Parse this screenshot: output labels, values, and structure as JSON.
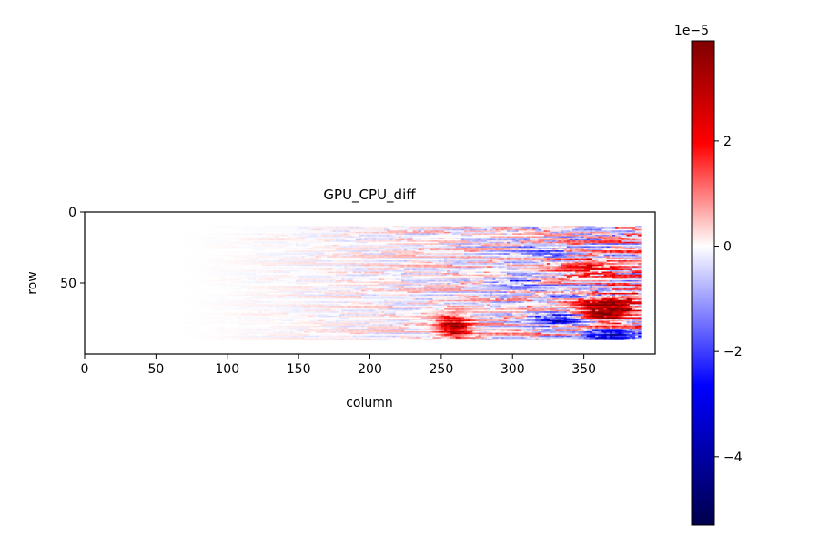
{
  "chart_data": {
    "type": "heatmap",
    "title": "GPU_CPU_diff",
    "xlabel": "column",
    "ylabel": "row",
    "x_ticks": [
      0,
      50,
      100,
      150,
      200,
      250,
      300,
      350
    ],
    "y_ticks": [
      0,
      50
    ],
    "xlim": [
      0,
      400
    ],
    "ylim": [
      100,
      0
    ],
    "grid": false,
    "data_shape": {
      "rows": 100,
      "columns": 400
    },
    "data_extent": {
      "columns": [
        0,
        390
      ],
      "rows": [
        10,
        90
      ]
    },
    "colormap": {
      "name": "seismic",
      "stops": [
        "#00004c",
        "#0000ff",
        "#ffffff",
        "#ff0000",
        "#7f0000"
      ]
    },
    "colorbar": {
      "vmin": -5.3,
      "vmax": 3.9,
      "scale_label": "1e−5",
      "ticks": [
        {
          "value": -4,
          "label": "−4"
        },
        {
          "value": -2,
          "label": "−2"
        },
        {
          "value": 0,
          "label": "0"
        },
        {
          "value": 2,
          "label": "2"
        }
      ]
    },
    "hotspots": [
      {
        "col": 258,
        "row": 80,
        "value": 3.0,
        "cols_spread": 12,
        "rows_spread": 9
      },
      {
        "col": 352,
        "row": 38,
        "value": 1.8,
        "cols_spread": 30,
        "rows_spread": 6
      },
      {
        "col": 360,
        "row": 62,
        "value": 2.6,
        "cols_spread": 28,
        "rows_spread": 7
      },
      {
        "col": 366,
        "row": 70,
        "value": 3.2,
        "cols_spread": 16,
        "rows_spread": 6
      },
      {
        "col": 370,
        "row": 87,
        "value": -3.8,
        "cols_spread": 20,
        "rows_spread": 4
      },
      {
        "col": 330,
        "row": 75,
        "value": -3.5,
        "cols_spread": 18,
        "rows_spread": 4
      },
      {
        "col": 345,
        "row": 58,
        "value": -2.0,
        "cols_spread": 25,
        "rows_spread": 5
      },
      {
        "col": 300,
        "row": 50,
        "value": -1.5,
        "cols_spread": 20,
        "rows_spread": 5
      },
      {
        "col": 320,
        "row": 28,
        "value": -1.2,
        "cols_spread": 25,
        "rows_spread": 6
      }
    ]
  }
}
